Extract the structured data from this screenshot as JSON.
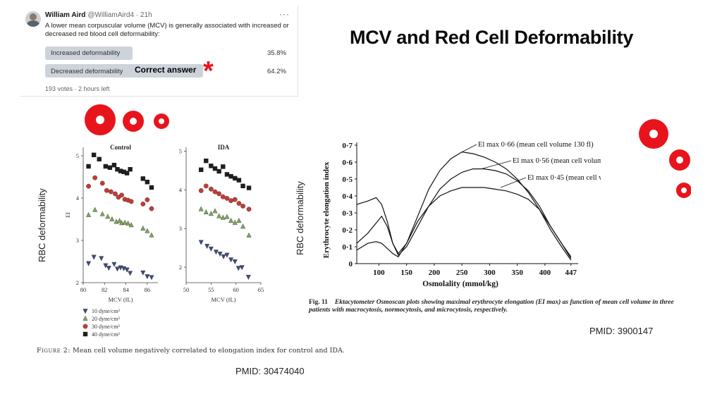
{
  "tweet": {
    "name": "William Aird",
    "handle": "@WilliamAird4 · 21h",
    "text": "A lower mean corpuscular volume (MCV) is generally associated with increased or decreased red blood cell deformability:",
    "options": [
      {
        "label": "Increased deformability",
        "percent": "35.8%",
        "value": 35.8
      },
      {
        "label": "Decreased deformability",
        "percent": "64.2%",
        "value": 64.2
      }
    ],
    "meta": "193 votes · 2 hours left",
    "more": "···"
  },
  "annotation": {
    "correct": "Correct answer",
    "star": "*"
  },
  "title": "MCV and Red Cell Deformability",
  "ylabel_overlay": "RBC deformability",
  "caption_left": {
    "label": "Figure 2:",
    "text": "Mean cell volume negatively correlated to elongation index for control and IDA."
  },
  "pmid_left": "PMID: 30474040",
  "pmid_right": "PMID: 3900147",
  "fig11": {
    "num": "Fig. 11",
    "caption": "Ektacytometer Osmoscan plots showing maximal erythrocyte elongation (EI max) as function of mean cell volume in three patients with macrocytosis, normocytosis, and microcytosis, respectively."
  },
  "colors": {
    "red": "#e8141c",
    "s10": "#3d4b7e",
    "s20": "#7fa65a",
    "s30": "#c43b33",
    "s40": "#1e1e1e",
    "poll_bar": "#cdd3da"
  },
  "chart_data": [
    {
      "type": "scatter",
      "title": "Control",
      "xlabel": "MCV (fL)",
      "ylabel": "EI",
      "xlim": [
        80,
        87
      ],
      "ylim": [
        2,
        5.2
      ],
      "xticks": [
        "80",
        "82",
        "84",
        "86"
      ],
      "yticks": [
        "2",
        "3",
        "4",
        "5"
      ],
      "series": [
        {
          "name": "10 dyne/cm²",
          "marker": "triangle-down",
          "x": [
            80.5,
            81.0,
            81.7,
            82.1,
            82.4,
            82.9,
            83.2,
            83.5,
            83.8,
            84.1,
            84.4,
            85.6,
            86.0,
            86.4
          ],
          "y": [
            2.46,
            2.61,
            2.58,
            2.41,
            2.35,
            2.44,
            2.33,
            2.36,
            2.34,
            2.31,
            2.23,
            2.24,
            2.15,
            2.13
          ]
        },
        {
          "name": "20 dyne/cm²",
          "marker": "triangle-up",
          "x": [
            80.5,
            81.1,
            81.8,
            82.3,
            82.7,
            83.1,
            83.4,
            83.6,
            83.9,
            84.2,
            84.5,
            85.6,
            86.0,
            86.4
          ],
          "y": [
            3.6,
            3.72,
            3.62,
            3.56,
            3.5,
            3.44,
            3.46,
            3.41,
            3.42,
            3.4,
            3.36,
            3.28,
            3.22,
            3.12
          ]
        },
        {
          "name": "30 dyne/cm²",
          "marker": "circle",
          "x": [
            80.5,
            81.1,
            81.8,
            82.2,
            82.6,
            83.0,
            83.3,
            83.6,
            83.9,
            84.2,
            84.5,
            85.6,
            86.0,
            86.4
          ],
          "y": [
            4.28,
            4.48,
            4.35,
            4.18,
            4.15,
            4.1,
            4.02,
            4.07,
            3.97,
            3.95,
            3.92,
            3.86,
            3.96,
            3.75
          ]
        },
        {
          "name": "40 dyne/cm²",
          "marker": "square",
          "x": [
            80.5,
            81.0,
            81.5,
            82.1,
            82.5,
            82.9,
            83.2,
            83.5,
            83.8,
            84.1,
            84.4,
            85.6,
            86.0,
            86.4
          ],
          "y": [
            4.75,
            5.02,
            4.92,
            4.75,
            4.72,
            4.78,
            4.68,
            4.64,
            4.62,
            4.59,
            4.68,
            4.46,
            4.38,
            4.25
          ]
        }
      ]
    },
    {
      "type": "scatter",
      "title": "IDA",
      "xlabel": "MCV (fL)",
      "xlim": [
        50,
        65
      ],
      "ylim": [
        1.6,
        5.1
      ],
      "xticks": [
        "50",
        "55",
        "60",
        "65"
      ],
      "yticks": [
        "2",
        "3",
        "4",
        "5"
      ],
      "series": [
        {
          "name": "10 dyne/cm²",
          "marker": "triangle-down",
          "x": [
            53.0,
            54.2,
            55.0,
            56.0,
            56.8,
            57.5,
            58.2,
            59.0,
            59.8,
            60.5,
            61.2,
            62.5
          ],
          "y": [
            2.65,
            2.55,
            2.48,
            2.4,
            2.35,
            2.28,
            2.32,
            2.2,
            2.15,
            1.98,
            2.0,
            1.75
          ]
        },
        {
          "name": "20 dyne/cm²",
          "marker": "triangle-up",
          "x": [
            53.0,
            54.0,
            55.0,
            55.8,
            56.6,
            57.4,
            58.2,
            59.0,
            59.8,
            60.6,
            61.4,
            62.6
          ],
          "y": [
            3.5,
            3.42,
            3.38,
            3.45,
            3.32,
            3.28,
            3.3,
            3.2,
            3.15,
            3.2,
            3.05,
            2.82
          ]
        },
        {
          "name": "30 dyne/cm²",
          "marker": "circle",
          "x": [
            53.0,
            54.0,
            55.0,
            55.8,
            56.6,
            57.4,
            58.2,
            59.0,
            59.8,
            60.6,
            61.4,
            62.6
          ],
          "y": [
            3.98,
            4.1,
            4.02,
            3.95,
            3.9,
            3.82,
            3.78,
            3.72,
            3.75,
            3.65,
            3.58,
            3.5
          ]
        },
        {
          "name": "40 dyne/cm²",
          "marker": "square",
          "x": [
            53.0,
            54.0,
            55.0,
            55.8,
            56.6,
            57.4,
            58.2,
            59.0,
            59.8,
            60.6,
            61.4,
            62.6
          ],
          "y": [
            4.52,
            4.75,
            4.62,
            4.55,
            4.48,
            4.6,
            4.4,
            4.35,
            4.3,
            4.25,
            4.1,
            4.05
          ]
        }
      ]
    },
    {
      "type": "line",
      "xlabel": "Osmolality (mmol/kg)",
      "ylabel": "Erythrocyte elongation index",
      "xlim": [
        60,
        460
      ],
      "ylim": [
        0,
        0.7
      ],
      "xticks": [
        "100",
        "150",
        "200",
        "250",
        "300",
        "350",
        "400",
        "447"
      ],
      "yticks": [
        "0",
        "0·1",
        "0·2",
        "0·3",
        "0·4",
        "0·5",
        "0·6",
        "0·7"
      ],
      "annotations": [
        "El max 0·66 (mean cell volume 130 fl)",
        "El max 0·56 (mean cell volume 87 fl)",
        "El max 0·45 (mean cell volume 64 fl)"
      ],
      "series": [
        {
          "x": [
            60,
            80,
            95,
            105,
            115,
            125,
            135,
            150,
            170,
            190,
            210,
            230,
            250,
            270,
            290,
            310,
            330,
            350,
            370,
            390,
            410,
            430,
            447
          ],
          "y": [
            0.35,
            0.37,
            0.39,
            0.35,
            0.25,
            0.12,
            0.06,
            0.12,
            0.28,
            0.44,
            0.55,
            0.62,
            0.66,
            0.65,
            0.63,
            0.6,
            0.56,
            0.5,
            0.42,
            0.32,
            0.2,
            0.1,
            0.02
          ]
        },
        {
          "x": [
            60,
            80,
            95,
            105,
            115,
            125,
            135,
            150,
            170,
            190,
            210,
            230,
            250,
            270,
            290,
            310,
            330,
            350,
            370,
            390,
            410,
            430,
            447
          ],
          "y": [
            0.12,
            0.18,
            0.24,
            0.28,
            0.22,
            0.12,
            0.05,
            0.1,
            0.22,
            0.34,
            0.44,
            0.5,
            0.54,
            0.56,
            0.56,
            0.55,
            0.53,
            0.49,
            0.43,
            0.34,
            0.22,
            0.12,
            0.03
          ]
        },
        {
          "x": [
            60,
            80,
            95,
            105,
            115,
            125,
            135,
            150,
            170,
            190,
            210,
            230,
            250,
            270,
            290,
            310,
            330,
            350,
            370,
            390,
            410,
            430,
            447
          ],
          "y": [
            0.08,
            0.12,
            0.13,
            0.12,
            0.09,
            0.06,
            0.04,
            0.12,
            0.25,
            0.34,
            0.4,
            0.43,
            0.45,
            0.45,
            0.45,
            0.44,
            0.43,
            0.41,
            0.38,
            0.32,
            0.22,
            0.12,
            0.04
          ]
        }
      ]
    }
  ]
}
